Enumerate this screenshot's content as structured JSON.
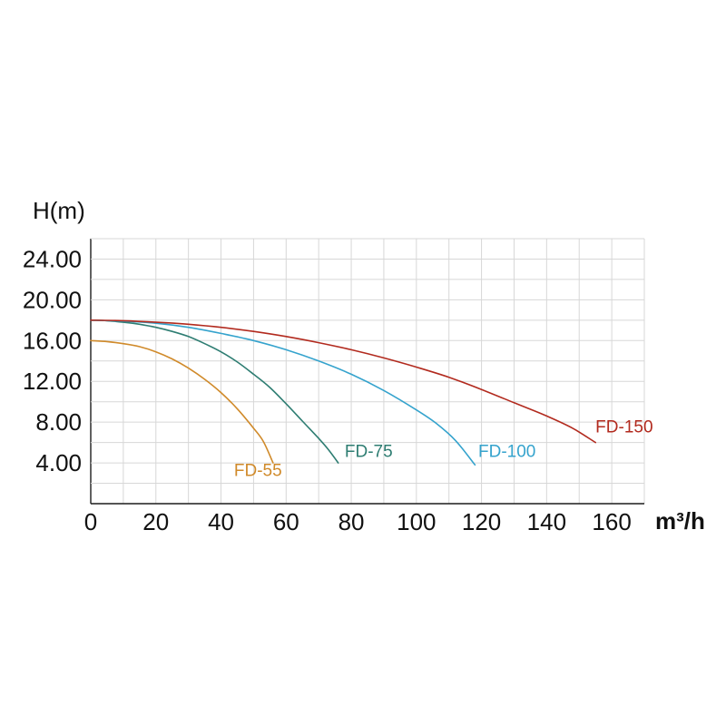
{
  "chart_data": {
    "type": "line",
    "ylabel": "H(m)",
    "xlabel": "m³/h",
    "x_range": [
      0,
      170
    ],
    "y_range": [
      0,
      26
    ],
    "x_ticks": [
      0,
      20,
      40,
      60,
      80,
      100,
      120,
      140,
      160
    ],
    "y_ticks": [
      4,
      8,
      12,
      16,
      20,
      24
    ],
    "y_tick_decimals": 2,
    "x_grid_step": 10,
    "y_grid_step": 2,
    "grid": true,
    "legend_position": "inline-labels",
    "series": [
      {
        "name": "FD-55",
        "color": "#d08a2a",
        "points": [
          [
            0,
            16
          ],
          [
            5,
            15.9
          ],
          [
            10,
            15.7
          ],
          [
            15,
            15.4
          ],
          [
            20,
            14.9
          ],
          [
            25,
            14.2
          ],
          [
            30,
            13.3
          ],
          [
            35,
            12.2
          ],
          [
            40,
            10.9
          ],
          [
            45,
            9.3
          ],
          [
            50,
            7.4
          ],
          [
            53,
            6.1
          ],
          [
            56,
            4.0
          ]
        ],
        "label_pos": [
          44,
          2.7
        ]
      },
      {
        "name": "FD-75",
        "color": "#2e7d72",
        "points": [
          [
            0,
            18
          ],
          [
            5,
            17.95
          ],
          [
            10,
            17.8
          ],
          [
            15,
            17.6
          ],
          [
            20,
            17.3
          ],
          [
            25,
            16.9
          ],
          [
            30,
            16.4
          ],
          [
            35,
            15.7
          ],
          [
            40,
            14.9
          ],
          [
            45,
            13.9
          ],
          [
            50,
            12.7
          ],
          [
            55,
            11.4
          ],
          [
            60,
            9.8
          ],
          [
            65,
            8.1
          ],
          [
            70,
            6.4
          ],
          [
            73,
            5.3
          ],
          [
            76,
            4.0
          ]
        ],
        "label_pos": [
          78,
          4.6
        ]
      },
      {
        "name": "FD-100",
        "color": "#35a3cd",
        "points": [
          [
            0,
            18
          ],
          [
            10,
            17.9
          ],
          [
            20,
            17.7
          ],
          [
            30,
            17.3
          ],
          [
            40,
            16.7
          ],
          [
            50,
            16.0
          ],
          [
            60,
            15.1
          ],
          [
            70,
            14.0
          ],
          [
            80,
            12.7
          ],
          [
            90,
            11.1
          ],
          [
            100,
            9.2
          ],
          [
            106,
            7.9
          ],
          [
            112,
            6.2
          ],
          [
            118,
            3.8
          ]
        ],
        "label_pos": [
          119,
          4.6
        ]
      },
      {
        "name": "FD-150",
        "color": "#b22a1e",
        "points": [
          [
            0,
            18
          ],
          [
            10,
            17.95
          ],
          [
            20,
            17.8
          ],
          [
            30,
            17.6
          ],
          [
            40,
            17.3
          ],
          [
            50,
            16.9
          ],
          [
            60,
            16.4
          ],
          [
            70,
            15.8
          ],
          [
            80,
            15.1
          ],
          [
            90,
            14.3
          ],
          [
            100,
            13.4
          ],
          [
            110,
            12.4
          ],
          [
            120,
            11.2
          ],
          [
            130,
            9.9
          ],
          [
            140,
            8.6
          ],
          [
            148,
            7.4
          ],
          [
            155,
            6.0
          ]
        ],
        "label_pos": [
          155,
          7.0
        ]
      }
    ]
  }
}
